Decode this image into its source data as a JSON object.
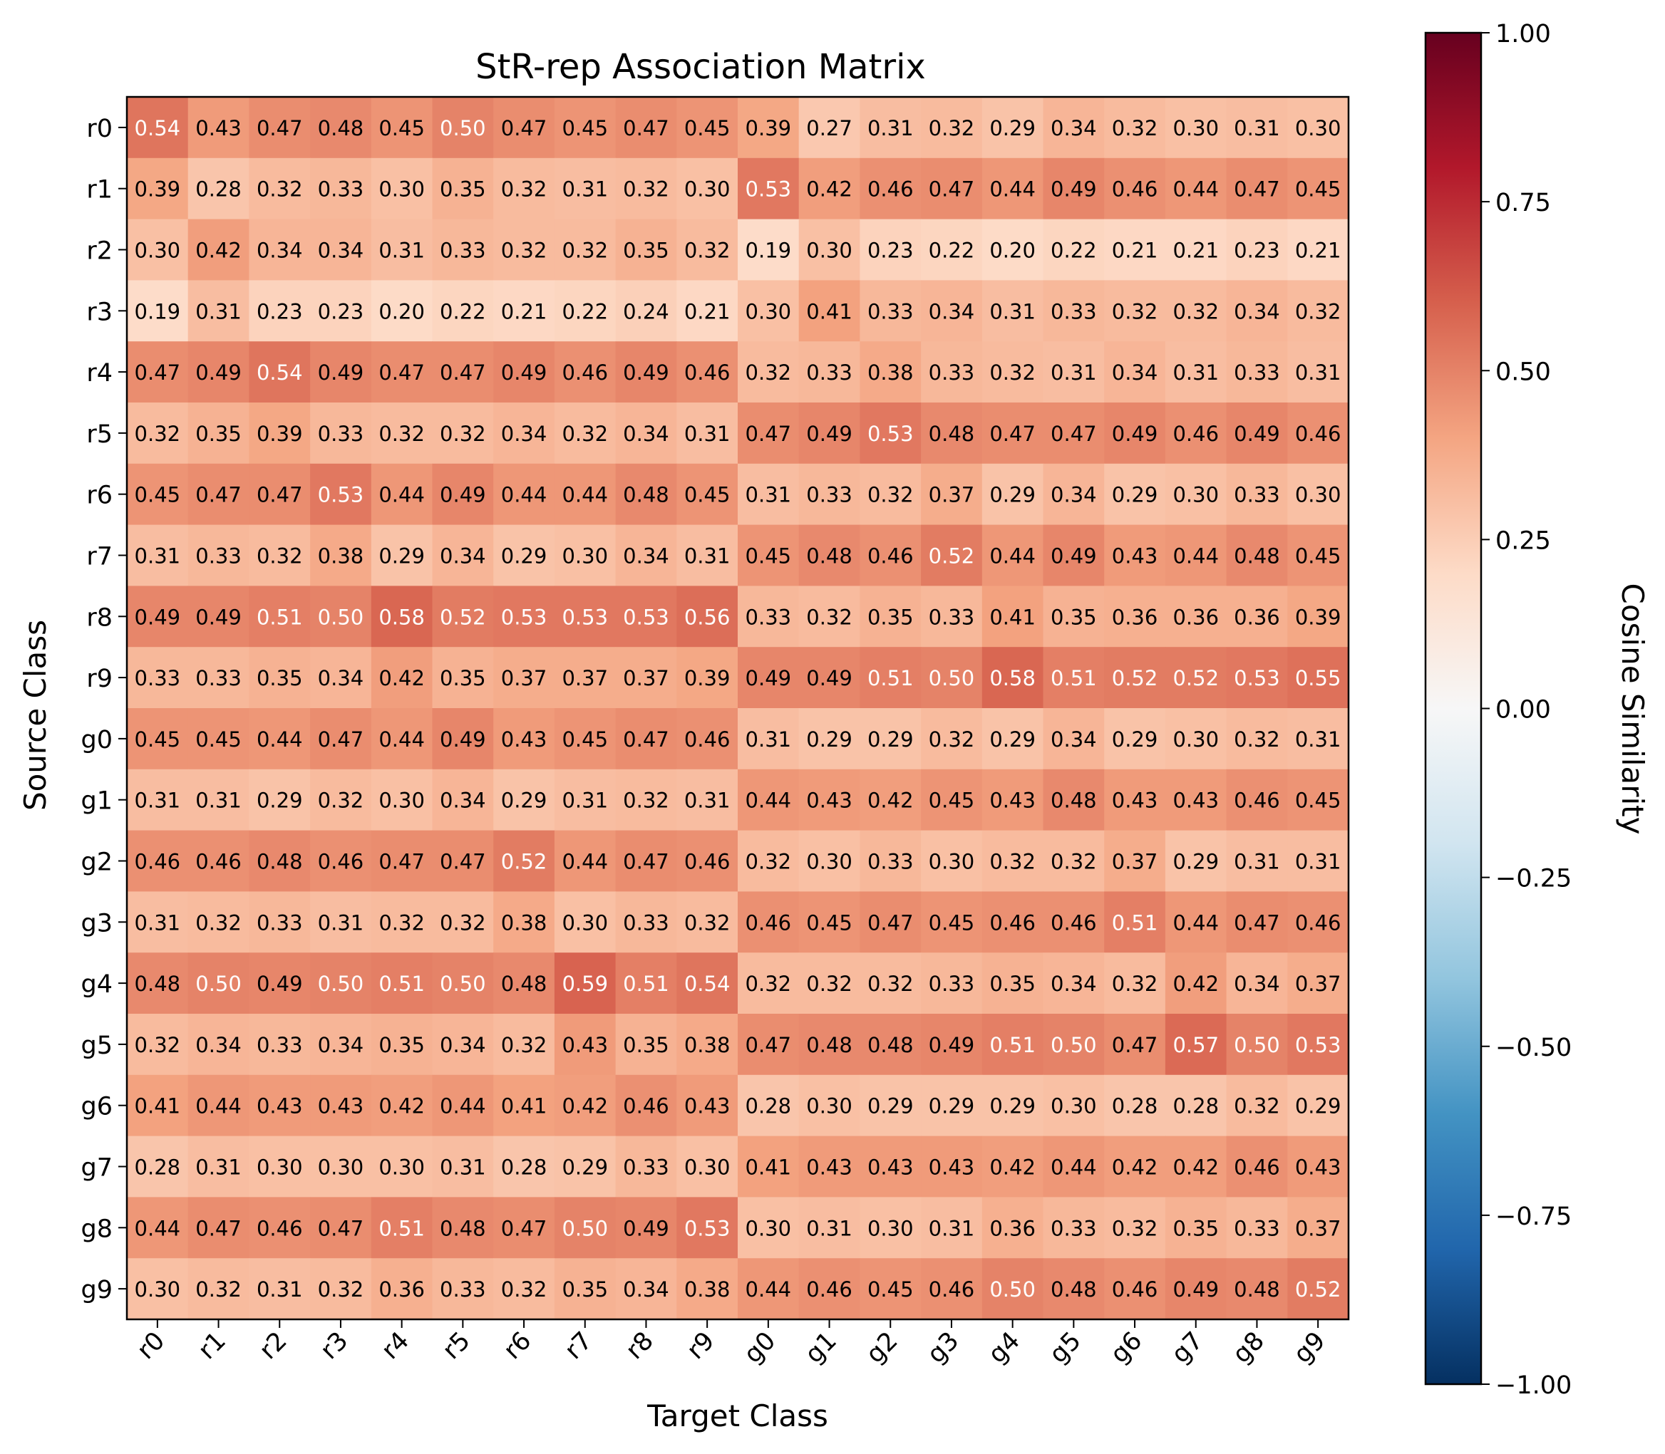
{
  "chart_data": {
    "type": "heatmap",
    "title": "StR-rep Association Matrix",
    "xlabel": "Target Class",
    "ylabel": "Source Class",
    "x_categories": [
      "r0",
      "r1",
      "r2",
      "r3",
      "r4",
      "r5",
      "r6",
      "r7",
      "r8",
      "r9",
      "g0",
      "g1",
      "g2",
      "g3",
      "g4",
      "g5",
      "g6",
      "g7",
      "g8",
      "g9"
    ],
    "y_categories": [
      "r0",
      "r1",
      "r2",
      "r3",
      "r4",
      "r5",
      "r6",
      "r7",
      "r8",
      "r9",
      "g0",
      "g1",
      "g2",
      "g3",
      "g4",
      "g5",
      "g6",
      "g7",
      "g8",
      "g9"
    ],
    "values": [
      [
        0.54,
        0.43,
        0.47,
        0.48,
        0.45,
        0.5,
        0.47,
        0.45,
        0.47,
        0.45,
        0.39,
        0.27,
        0.31,
        0.32,
        0.29,
        0.34,
        0.32,
        0.3,
        0.31,
        0.3
      ],
      [
        0.39,
        0.28,
        0.32,
        0.33,
        0.3,
        0.35,
        0.32,
        0.31,
        0.32,
        0.3,
        0.53,
        0.42,
        0.46,
        0.47,
        0.44,
        0.49,
        0.46,
        0.44,
        0.47,
        0.45
      ],
      [
        0.3,
        0.42,
        0.34,
        0.34,
        0.31,
        0.33,
        0.32,
        0.32,
        0.35,
        0.32,
        0.19,
        0.3,
        0.23,
        0.22,
        0.2,
        0.22,
        0.21,
        0.21,
        0.23,
        0.21
      ],
      [
        0.19,
        0.31,
        0.23,
        0.23,
        0.2,
        0.22,
        0.21,
        0.22,
        0.24,
        0.21,
        0.3,
        0.41,
        0.33,
        0.34,
        0.31,
        0.33,
        0.32,
        0.32,
        0.34,
        0.32
      ],
      [
        0.47,
        0.49,
        0.54,
        0.49,
        0.47,
        0.47,
        0.49,
        0.46,
        0.49,
        0.46,
        0.32,
        0.33,
        0.38,
        0.33,
        0.32,
        0.31,
        0.34,
        0.31,
        0.33,
        0.31
      ],
      [
        0.32,
        0.35,
        0.39,
        0.33,
        0.32,
        0.32,
        0.34,
        0.32,
        0.34,
        0.31,
        0.47,
        0.49,
        0.53,
        0.48,
        0.47,
        0.47,
        0.49,
        0.46,
        0.49,
        0.46
      ],
      [
        0.45,
        0.47,
        0.47,
        0.53,
        0.44,
        0.49,
        0.44,
        0.44,
        0.48,
        0.45,
        0.31,
        0.33,
        0.32,
        0.37,
        0.29,
        0.34,
        0.29,
        0.3,
        0.33,
        0.3
      ],
      [
        0.31,
        0.33,
        0.32,
        0.38,
        0.29,
        0.34,
        0.29,
        0.3,
        0.34,
        0.31,
        0.45,
        0.48,
        0.46,
        0.52,
        0.44,
        0.49,
        0.43,
        0.44,
        0.48,
        0.45
      ],
      [
        0.49,
        0.49,
        0.51,
        0.5,
        0.58,
        0.52,
        0.53,
        0.53,
        0.53,
        0.56,
        0.33,
        0.32,
        0.35,
        0.33,
        0.41,
        0.35,
        0.36,
        0.36,
        0.36,
        0.39
      ],
      [
        0.33,
        0.33,
        0.35,
        0.34,
        0.42,
        0.35,
        0.37,
        0.37,
        0.37,
        0.39,
        0.49,
        0.49,
        0.51,
        0.5,
        0.58,
        0.51,
        0.52,
        0.52,
        0.53,
        0.55
      ],
      [
        0.45,
        0.45,
        0.44,
        0.47,
        0.44,
        0.49,
        0.43,
        0.45,
        0.47,
        0.46,
        0.31,
        0.29,
        0.29,
        0.32,
        0.29,
        0.34,
        0.29,
        0.3,
        0.32,
        0.31
      ],
      [
        0.31,
        0.31,
        0.29,
        0.32,
        0.3,
        0.34,
        0.29,
        0.31,
        0.32,
        0.31,
        0.44,
        0.43,
        0.42,
        0.45,
        0.43,
        0.48,
        0.43,
        0.43,
        0.46,
        0.45
      ],
      [
        0.46,
        0.46,
        0.48,
        0.46,
        0.47,
        0.47,
        0.52,
        0.44,
        0.47,
        0.46,
        0.32,
        0.3,
        0.33,
        0.3,
        0.32,
        0.32,
        0.37,
        0.29,
        0.31,
        0.31
      ],
      [
        0.31,
        0.32,
        0.33,
        0.31,
        0.32,
        0.32,
        0.38,
        0.3,
        0.33,
        0.32,
        0.46,
        0.45,
        0.47,
        0.45,
        0.46,
        0.46,
        0.51,
        0.44,
        0.47,
        0.46
      ],
      [
        0.48,
        0.5,
        0.49,
        0.5,
        0.51,
        0.5,
        0.48,
        0.59,
        0.51,
        0.54,
        0.32,
        0.32,
        0.32,
        0.33,
        0.35,
        0.34,
        0.32,
        0.42,
        0.34,
        0.37
      ],
      [
        0.32,
        0.34,
        0.33,
        0.34,
        0.35,
        0.34,
        0.32,
        0.43,
        0.35,
        0.38,
        0.47,
        0.48,
        0.48,
        0.49,
        0.51,
        0.5,
        0.47,
        0.57,
        0.5,
        0.53
      ],
      [
        0.41,
        0.44,
        0.43,
        0.43,
        0.42,
        0.44,
        0.41,
        0.42,
        0.46,
        0.43,
        0.28,
        0.3,
        0.29,
        0.29,
        0.29,
        0.3,
        0.28,
        0.28,
        0.32,
        0.29
      ],
      [
        0.28,
        0.31,
        0.3,
        0.3,
        0.3,
        0.31,
        0.28,
        0.29,
        0.33,
        0.3,
        0.41,
        0.43,
        0.43,
        0.43,
        0.42,
        0.44,
        0.42,
        0.42,
        0.46,
        0.43
      ],
      [
        0.44,
        0.47,
        0.46,
        0.47,
        0.51,
        0.48,
        0.47,
        0.5,
        0.49,
        0.53,
        0.3,
        0.31,
        0.3,
        0.31,
        0.36,
        0.33,
        0.32,
        0.35,
        0.33,
        0.37
      ],
      [
        0.3,
        0.32,
        0.31,
        0.32,
        0.36,
        0.33,
        0.32,
        0.35,
        0.34,
        0.38,
        0.44,
        0.46,
        0.45,
        0.46,
        0.5,
        0.48,
        0.46,
        0.49,
        0.48,
        0.52
      ]
    ],
    "colorscale": "RdBu_r",
    "vmin": -1.0,
    "vmax": 1.0,
    "colorbar": {
      "label": "Cosine Similarity",
      "ticks": [
        1.0,
        0.75,
        0.5,
        0.25,
        0.0,
        -0.25,
        -0.5,
        -0.75,
        -1.0
      ],
      "tick_labels": [
        "1.00",
        "0.75",
        "0.50",
        "0.25",
        "0.00",
        "−0.25",
        "−0.50",
        "−0.75",
        "−1.00"
      ]
    },
    "annotations": "cell values shown with two decimals; white text on darker cells",
    "grid": false,
    "legend": "none"
  }
}
